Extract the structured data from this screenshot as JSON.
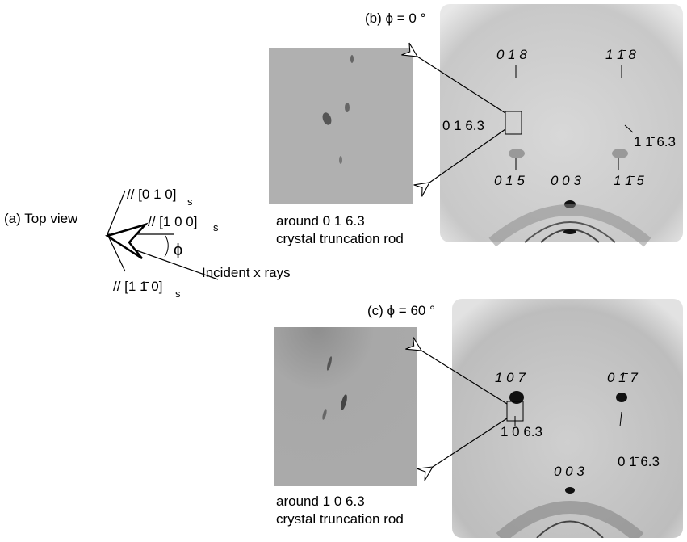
{
  "panel_a": {
    "label": "(a) Top view",
    "axes": [
      {
        "text": "// [0 1 0]",
        "sub": "s"
      },
      {
        "text": "// [1 0 0]",
        "sub": "s"
      },
      {
        "text": "// [1 1̄ 0]",
        "sub": "s"
      }
    ],
    "angle": "ϕ",
    "incident": "Incident x rays"
  },
  "panel_b": {
    "title": "(b) ϕ = 0 °",
    "spots": [
      "0 1 8",
      "1 1̄ 8",
      "0 1 6.3",
      "1 1̄ 6.3",
      "0 1 5",
      "0 0 3",
      "1 1̄ 5"
    ],
    "caption": [
      "around 0 1 6.3",
      "crystal truncation rod"
    ]
  },
  "panel_c": {
    "title": "(c) ϕ = 60 °",
    "spots": [
      "1 0 7",
      "0 1̄ 7",
      "1 0 6.3",
      "0 1̄ 6.3",
      "0 0 3"
    ],
    "caption": [
      "around 1 0 6.3",
      "crystal truncation rod"
    ]
  }
}
